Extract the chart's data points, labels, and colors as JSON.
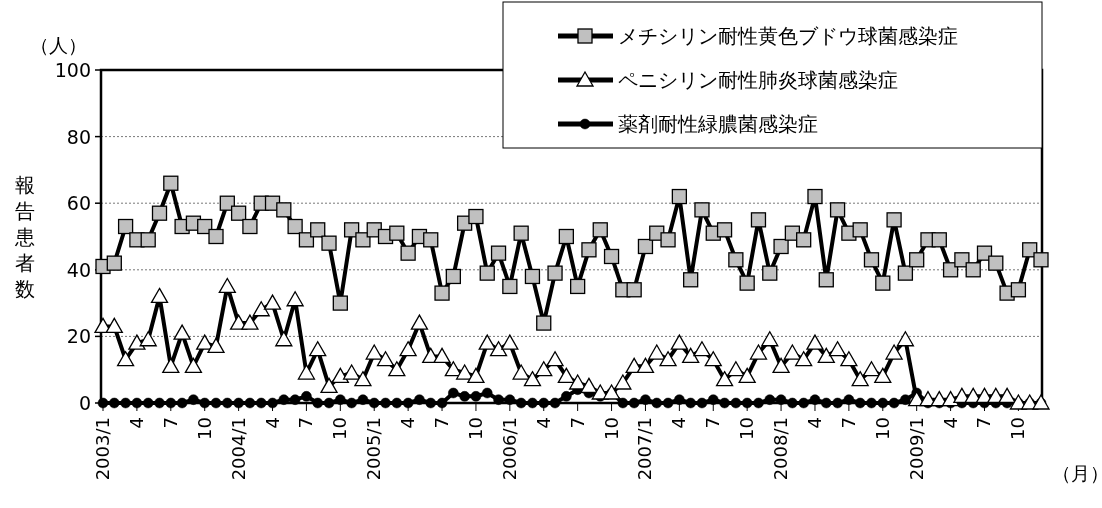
{
  "chart_data": {
    "type": "line",
    "ylabel": "報告患者数",
    "annotations": [
      "（人）",
      "（月）"
    ],
    "categories": [
      "2003/1",
      null,
      null,
      "4",
      null,
      null,
      "7",
      null,
      null,
      "10",
      null,
      null,
      "2004/1",
      null,
      null,
      "4",
      null,
      null,
      "7",
      null,
      null,
      "10",
      null,
      null,
      "2005/1",
      null,
      null,
      "4",
      null,
      null,
      "7",
      null,
      null,
      "10",
      null,
      null,
      "2006/1",
      null,
      null,
      "4",
      null,
      null,
      "7",
      null,
      null,
      "10",
      null,
      null,
      "2007/1",
      null,
      null,
      "4",
      null,
      null,
      "7",
      null,
      null,
      "10",
      null,
      null,
      "2008/1",
      null,
      null,
      "4",
      null,
      null,
      "7",
      null,
      null,
      "10",
      null,
      null,
      "2009/1",
      null,
      null,
      "4",
      null,
      null,
      "7",
      null,
      null,
      "10",
      null,
      null
    ],
    "ylim": [
      0,
      100
    ],
    "yticks": [
      0,
      20,
      40,
      60,
      80,
      100
    ],
    "grid": "y",
    "legend": "top right",
    "series": [
      {
        "name": "メチシリン耐性黄色ブドウ球菌感染症",
        "color": "#c0c0c0",
        "marker": "square",
        "values": [
          41,
          42,
          53,
          49,
          49,
          57,
          66,
          53,
          54,
          53,
          50,
          60,
          57,
          53,
          60,
          60,
          58,
          53,
          49,
          52,
          48,
          30,
          52,
          49,
          52,
          50,
          51,
          45,
          50,
          49,
          33,
          38,
          54,
          56,
          39,
          45,
          35,
          51,
          38,
          24,
          39,
          50,
          35,
          46,
          52,
          44,
          34,
          34,
          47,
          51,
          49,
          62,
          37,
          58,
          51,
          52,
          43,
          36,
          55,
          39,
          47,
          51,
          49,
          62,
          37,
          58,
          51,
          52,
          43,
          36,
          55,
          39,
          43,
          49,
          49,
          40,
          43,
          40,
          45,
          42,
          33,
          34,
          46,
          43
        ]
      },
      {
        "name": "ペニシリン耐性肺炎球菌感染症",
        "color": "#ffffff",
        "marker": "triangle",
        "values": [
          23,
          23,
          13,
          18,
          19,
          32,
          11,
          21,
          11,
          18,
          17,
          35,
          24,
          24,
          28,
          30,
          19,
          31,
          9,
          16,
          5,
          8,
          9,
          7,
          15,
          13,
          10,
          16,
          24,
          14,
          14,
          10,
          9,
          8,
          18,
          16,
          18,
          9,
          7,
          10,
          13,
          8,
          6,
          5,
          3,
          3,
          6,
          11,
          11,
          15,
          13,
          18,
          14,
          16,
          13,
          7,
          10,
          8,
          15,
          19,
          11,
          15,
          13,
          18,
          14,
          16,
          13,
          7,
          10,
          8,
          15,
          19,
          1,
          1,
          1,
          1,
          2,
          2,
          2,
          2,
          2,
          0,
          0,
          0
        ]
      },
      {
        "name": "薬剤耐性緑膿菌感染症",
        "color": "#000000",
        "marker": "circle",
        "values": [
          0,
          0,
          0,
          0,
          0,
          0,
          0,
          0,
          1,
          0,
          0,
          0,
          0,
          0,
          0,
          0,
          1,
          1,
          2,
          0,
          0,
          1,
          0,
          1,
          0,
          0,
          0,
          0,
          1,
          0,
          0,
          3,
          2,
          2,
          3,
          1,
          1,
          0,
          0,
          0,
          0,
          2,
          4,
          3,
          2,
          3,
          0,
          0,
          1,
          0,
          0,
          1,
          0,
          0,
          1,
          0,
          0,
          0,
          0,
          1,
          1,
          0,
          0,
          1,
          0,
          0,
          1,
          0,
          0,
          0,
          0,
          1,
          3,
          0,
          0,
          0,
          0,
          0,
          0,
          0,
          0,
          0,
          0,
          0
        ]
      }
    ]
  }
}
